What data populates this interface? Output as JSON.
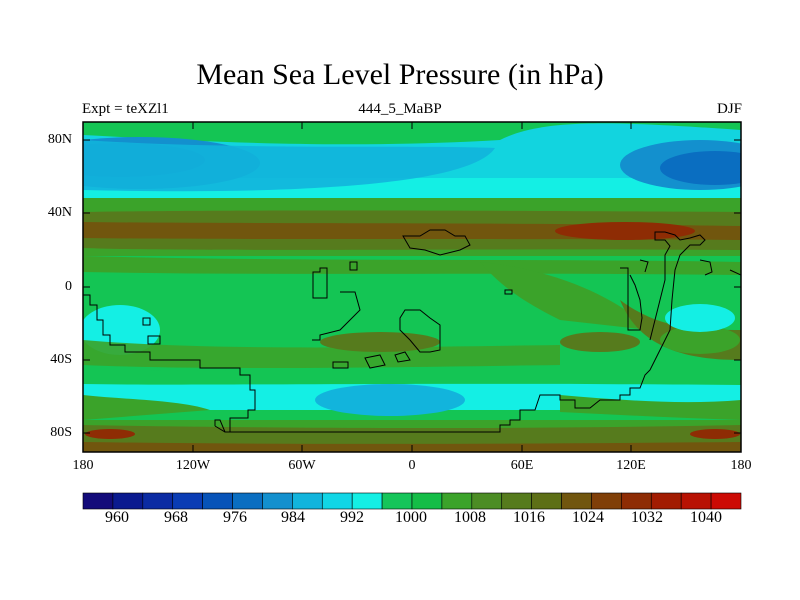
{
  "title": "Mean Sea Level Pressure (in hPa)",
  "subtitle": {
    "left": "Expt = teXZl1",
    "center": "444_5_MaBP",
    "right": "DJF"
  },
  "map": {
    "lat_labels": [
      "80N",
      "40N",
      "0",
      "40S",
      "80S"
    ],
    "lon_labels": [
      "180",
      "120W",
      "60W",
      "0",
      "60E",
      "120E",
      "180"
    ]
  },
  "colorbar": {
    "labels": [
      "960",
      "968",
      "976",
      "984",
      "992",
      "1000",
      "1008",
      "1016",
      "1024",
      "1032",
      "1040"
    ],
    "colors": [
      "#130b7a",
      "#0a1a8f",
      "#0b2ba3",
      "#0a3cb4",
      "#0753b8",
      "#0a6ec1",
      "#1390ce",
      "#12b4dc",
      "#11d6e6",
      "#14efe4",
      "#15c55a",
      "#14bd47",
      "#3ba32a",
      "#4c8d24",
      "#567b1d",
      "#5d6f16",
      "#71560e",
      "#803f08",
      "#8e2c04",
      "#a21c02",
      "#b81203",
      "#cc0a04"
    ]
  }
}
